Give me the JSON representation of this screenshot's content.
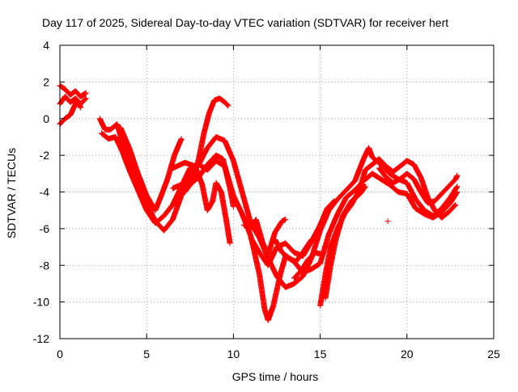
{
  "chart_data": {
    "type": "scatter",
    "title": "Day 117 of 2025, Sidereal Day-to-day VTEC variation (SDTVAR) for receiver hert",
    "xlabel": "GPS time / hours",
    "ylabel": "SDTVAR / TECUs",
    "xlim": [
      0,
      25
    ],
    "ylim": [
      -12,
      4
    ],
    "xticks": [
      0,
      5,
      10,
      15,
      20,
      25
    ],
    "yticks": [
      -12,
      -10,
      -8,
      -6,
      -4,
      -2,
      0,
      2,
      4
    ],
    "grid": true,
    "legend": "none",
    "marker": "+",
    "series_color": "#ff0000",
    "series": [
      {
        "points": [
          [
            0.0,
            1.8
          ],
          [
            0.3,
            1.6
          ],
          [
            0.6,
            1.3
          ],
          [
            0.9,
            1.5
          ],
          [
            1.2,
            1.2
          ],
          [
            1.5,
            1.4
          ]
        ]
      },
      {
        "points": [
          [
            0.0,
            0.8
          ],
          [
            0.3,
            1.2
          ],
          [
            0.6,
            0.9
          ],
          [
            0.9,
            1.1
          ],
          [
            1.2,
            0.8
          ],
          [
            1.5,
            1.1
          ]
        ]
      },
      {
        "points": [
          [
            0.0,
            -0.3
          ],
          [
            0.3,
            0.0
          ],
          [
            0.6,
            0.2
          ],
          [
            0.8,
            0.6
          ],
          [
            1.0,
            1.0
          ],
          [
            1.2,
            0.6
          ]
        ]
      },
      {
        "points": [
          [
            2.3,
            0.0
          ],
          [
            2.6,
            -0.6
          ],
          [
            2.9,
            -0.6
          ],
          [
            3.3,
            -0.3
          ],
          [
            3.6,
            -1.3
          ],
          [
            4.0,
            -2.3
          ],
          [
            4.5,
            -3.6
          ],
          [
            5.0,
            -4.6
          ],
          [
            5.5,
            -5.6
          ],
          [
            6.0,
            -6.1
          ],
          [
            6.5,
            -5.5
          ],
          [
            7.0,
            -4.2
          ],
          [
            7.5,
            -3.2
          ],
          [
            8.0,
            -2.5
          ],
          [
            8.5,
            -1.6
          ],
          [
            9.0,
            -1.0
          ],
          [
            9.5,
            -1.2
          ],
          [
            10.0,
            -2.3
          ],
          [
            10.5,
            -4.0
          ],
          [
            11.0,
            -5.7
          ],
          [
            11.5,
            -6.5
          ],
          [
            12.0,
            -7.6
          ],
          [
            12.5,
            -8.6
          ],
          [
            13.0,
            -9.2
          ],
          [
            13.5,
            -9.0
          ],
          [
            14.0,
            -8.6
          ],
          [
            14.5,
            -7.6
          ],
          [
            15.0,
            -6.1
          ],
          [
            15.5,
            -5.0
          ],
          [
            16.0,
            -4.4
          ],
          [
            16.5,
            -3.9
          ],
          [
            17.0,
            -3.4
          ],
          [
            17.5,
            -2.2
          ],
          [
            17.8,
            -1.6
          ],
          [
            18.0,
            -2.1
          ],
          [
            18.5,
            -2.5
          ],
          [
            19.0,
            -3.0
          ],
          [
            19.5,
            -3.3
          ],
          [
            20.0,
            -3.5
          ],
          [
            20.5,
            -4.4
          ],
          [
            21.0,
            -5.0
          ],
          [
            21.5,
            -5.3
          ],
          [
            22.0,
            -4.9
          ],
          [
            22.5,
            -4.3
          ],
          [
            22.9,
            -3.7
          ]
        ]
      },
      {
        "points": [
          [
            2.4,
            -0.8
          ],
          [
            2.8,
            -1.1
          ],
          [
            3.2,
            -1.0
          ],
          [
            3.6,
            -1.8
          ],
          [
            4.0,
            -2.8
          ],
          [
            4.5,
            -3.9
          ],
          [
            5.0,
            -5.0
          ],
          [
            5.5,
            -5.7
          ],
          [
            6.0,
            -5.3
          ],
          [
            6.5,
            -4.7
          ],
          [
            7.0,
            -3.7
          ],
          [
            7.5,
            -2.7
          ],
          [
            8.0,
            -2.5
          ],
          [
            8.5,
            -2.8
          ],
          [
            9.0,
            -2.3
          ],
          [
            9.5,
            -2.6
          ],
          [
            10.0,
            -4.2
          ],
          [
            10.5,
            -5.2
          ],
          [
            11.0,
            -6.4
          ],
          [
            11.5,
            -8.5
          ],
          [
            11.8,
            -10.4
          ],
          [
            12.0,
            -11.0
          ],
          [
            12.3,
            -10.2
          ],
          [
            12.7,
            -8.5
          ],
          [
            13.0,
            -7.5
          ],
          [
            13.5,
            -7.8
          ],
          [
            14.0,
            -8.4
          ],
          [
            14.5,
            -8.2
          ],
          [
            15.0,
            -7.9
          ],
          [
            15.5,
            -6.3
          ],
          [
            16.0,
            -5.2
          ],
          [
            16.5,
            -4.3
          ],
          [
            17.0,
            -3.9
          ],
          [
            17.5,
            -3.4
          ],
          [
            18.0,
            -3.0
          ],
          [
            18.5,
            -3.3
          ],
          [
            19.0,
            -3.6
          ],
          [
            19.5,
            -4.0
          ],
          [
            20.0,
            -4.1
          ],
          [
            20.5,
            -4.9
          ],
          [
            21.0,
            -5.2
          ],
          [
            21.5,
            -5.4
          ],
          [
            22.0,
            -5.1
          ],
          [
            22.5,
            -4.6
          ],
          [
            22.9,
            -4.0
          ]
        ]
      },
      {
        "points": [
          [
            3.5,
            -0.5
          ],
          [
            4.0,
            -1.6
          ],
          [
            4.5,
            -3.0
          ],
          [
            5.0,
            -4.2
          ],
          [
            5.5,
            -5.0
          ],
          [
            5.8,
            -4.3
          ],
          [
            6.2,
            -3.3
          ],
          [
            6.6,
            -2.0
          ],
          [
            7.0,
            -1.1
          ]
        ]
      },
      {
        "points": [
          [
            6.5,
            -3.8
          ],
          [
            7.0,
            -3.6
          ],
          [
            7.5,
            -3.6
          ],
          [
            8.0,
            -3.2
          ],
          [
            8.5,
            -2.5
          ],
          [
            9.0,
            -2.0
          ],
          [
            9.4,
            -2.2
          ],
          [
            9.8,
            -3.8
          ],
          [
            10.0,
            -4.8
          ]
        ]
      },
      {
        "points": [
          [
            6.5,
            -2.7
          ],
          [
            7.2,
            -2.4
          ],
          [
            7.8,
            -2.6
          ],
          [
            8.2,
            -3.6
          ],
          [
            8.5,
            -5.0
          ],
          [
            8.8,
            -4.5
          ],
          [
            9.0,
            -3.5
          ],
          [
            9.3,
            -4.0
          ],
          [
            9.6,
            -5.6
          ],
          [
            9.8,
            -6.8
          ]
        ]
      },
      {
        "points": [
          [
            7.2,
            -4.0
          ],
          [
            7.6,
            -3.5
          ],
          [
            8.0,
            -2.2
          ],
          [
            8.3,
            -0.8
          ],
          [
            8.6,
            0.3
          ],
          [
            8.9,
            1.0
          ],
          [
            9.2,
            1.1
          ],
          [
            9.5,
            0.9
          ],
          [
            9.7,
            0.7
          ]
        ]
      },
      {
        "points": [
          [
            10.6,
            -5.8
          ],
          [
            11.0,
            -6.0
          ],
          [
            11.3,
            -5.5
          ],
          [
            11.7,
            -6.8
          ],
          [
            12.0,
            -7.4
          ],
          [
            12.4,
            -6.2
          ],
          [
            12.8,
            -5.6
          ],
          [
            13.0,
            -5.5
          ]
        ]
      },
      {
        "points": [
          [
            11.0,
            -6.5
          ],
          [
            11.5,
            -7.3
          ],
          [
            12.0,
            -8.0
          ],
          [
            12.5,
            -7.0
          ],
          [
            13.0,
            -6.8
          ],
          [
            13.5,
            -7.3
          ],
          [
            14.0,
            -7.5
          ],
          [
            14.5,
            -6.7
          ],
          [
            15.0,
            -5.8
          ],
          [
            15.4,
            -4.9
          ],
          [
            15.8,
            -4.5
          ]
        ]
      },
      {
        "points": [
          [
            12.4,
            -6.6
          ],
          [
            12.8,
            -7.3
          ],
          [
            13.2,
            -7.6
          ],
          [
            13.6,
            -7.8
          ],
          [
            14.0,
            -7.3
          ],
          [
            14.5,
            -6.6
          ]
        ]
      },
      {
        "points": [
          [
            13.5,
            -8.7
          ],
          [
            13.9,
            -8.3
          ],
          [
            14.3,
            -7.7
          ],
          [
            14.7,
            -7.3
          ],
          [
            15.1,
            -7.4
          ]
        ]
      },
      {
        "points": [
          [
            15.0,
            -10.2
          ],
          [
            15.3,
            -8.5
          ],
          [
            15.6,
            -7.0
          ],
          [
            16.0,
            -6.0
          ],
          [
            16.4,
            -5.2
          ],
          [
            16.8,
            -4.7
          ],
          [
            17.2,
            -4.0
          ],
          [
            17.5,
            -3.6
          ]
        ]
      },
      {
        "points": [
          [
            15.3,
            -9.8
          ],
          [
            15.6,
            -8.0
          ],
          [
            15.9,
            -6.6
          ],
          [
            16.3,
            -5.3
          ],
          [
            16.8,
            -4.5
          ],
          [
            17.3,
            -4.1
          ],
          [
            17.6,
            -3.7
          ]
        ]
      },
      {
        "points": [
          [
            17.2,
            -4.1
          ],
          [
            17.6,
            -2.8
          ],
          [
            18.0,
            -2.5
          ],
          [
            18.4,
            -2.2
          ],
          [
            18.8,
            -2.6
          ],
          [
            19.2,
            -2.9
          ],
          [
            19.6,
            -2.6
          ],
          [
            20.0,
            -2.3
          ],
          [
            20.4,
            -2.5
          ],
          [
            20.8,
            -3.2
          ],
          [
            21.2,
            -4.3
          ],
          [
            21.6,
            -5.0
          ],
          [
            22.0,
            -5.4
          ],
          [
            22.4,
            -5.1
          ],
          [
            22.8,
            -4.7
          ]
        ]
      },
      {
        "points": [
          [
            18.4,
            -2.7
          ],
          [
            18.8,
            -3.2
          ],
          [
            19.2,
            -3.5
          ],
          [
            19.6,
            -3.3
          ],
          [
            20.0,
            -3.0
          ],
          [
            20.4,
            -3.3
          ],
          [
            20.8,
            -4.0
          ],
          [
            21.2,
            -4.6
          ],
          [
            21.6,
            -4.5
          ],
          [
            22.0,
            -4.1
          ],
          [
            22.4,
            -3.7
          ],
          [
            22.8,
            -3.3
          ],
          [
            22.9,
            -3.1
          ]
        ]
      },
      {
        "points": [
          [
            18.9,
            -5.6
          ]
        ]
      }
    ]
  }
}
